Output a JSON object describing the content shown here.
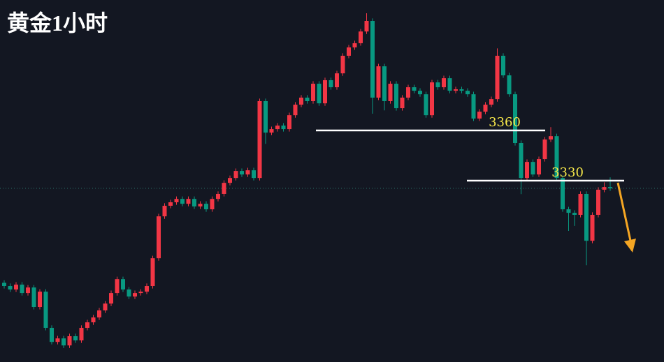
{
  "chart_data": {
    "type": "candlestick",
    "title": "黄金1小时",
    "up_color": "#f23645",
    "down_color": "#089981",
    "ylim": [
      3221.7,
      3437.9
    ],
    "levels": [
      3360,
      3330
    ],
    "open": [
      3269.0,
      3267.1,
      3265.0,
      3267.9,
      3262.9,
      3266.2,
      3254.6,
      3263.7,
      3242.1,
      3233.7,
      3235.8,
      3231.6,
      3237.1,
      3234.6,
      3242.1,
      3245.4,
      3248.3,
      3252.5,
      3256.6,
      3262.9,
      3271.2,
      3265.0,
      3260.8,
      3262.9,
      3263.7,
      3267.1,
      3283.7,
      3308.7,
      3315.0,
      3317.1,
      3319.1,
      3316.2,
      3319.1,
      3314.6,
      3316.2,
      3312.9,
      3319.1,
      3322.1,
      3328.7,
      3331.6,
      3335.8,
      3333.7,
      3336.2,
      3331.6,
      3377.5,
      3358.7,
      3360.8,
      3362.9,
      3360.8,
      3369.1,
      3375.4,
      3379.6,
      3377.5,
      3387.9,
      3376.2,
      3390.0,
      3385.8,
      3394.1,
      3404.6,
      3409.6,
      3412.1,
      3419.1,
      3425.4,
      3379.6,
      3398.3,
      3377.5,
      3387.9,
      3373.3,
      3379.6,
      3385.8,
      3383.7,
      3381.6,
      3369.1,
      3388.7,
      3385.8,
      3391.2,
      3383.7,
      3384.6,
      3383.7,
      3381.6,
      3367.1,
      3371.2,
      3375.4,
      3378.7,
      3404.6,
      3392.9,
      3381.6,
      3352.5,
      3331.6,
      3341.2,
      3333.7,
      3342.9,
      3354.6,
      3356.6,
      3331.6,
      3312.9,
      3310.8,
      3309.6,
      3322.1,
      3294.1,
      3309.6,
      3324.6,
      3326.2
    ],
    "high": [
      3270.5,
      3268.6,
      3269.4,
      3269.4,
      3267.7,
      3267.7,
      3265.2,
      3265.2,
      3243.6,
      3237.3,
      3237.3,
      3238.6,
      3238.6,
      3243.6,
      3246.9,
      3249.8,
      3254.0,
      3258.1,
      3264.4,
      3272.7,
      3272.7,
      3266.5,
      3264.4,
      3265.2,
      3268.6,
      3285.2,
      3310.2,
      3316.5,
      3318.6,
      3320.6,
      3320.6,
      3320.6,
      3320.6,
      3317.7,
      3317.7,
      3320.6,
      3323.6,
      3330.2,
      3333.1,
      3337.3,
      3337.3,
      3337.7,
      3337.7,
      3379.0,
      3379.0,
      3362.3,
      3364.4,
      3364.4,
      3370.6,
      3376.9,
      3381.1,
      3381.1,
      3389.4,
      3389.4,
      3391.5,
      3391.5,
      3395.6,
      3406.1,
      3411.1,
      3413.6,
      3420.6,
      3430.0,
      3426.9,
      3399.8,
      3399.8,
      3389.4,
      3389.4,
      3381.1,
      3387.3,
      3387.3,
      3385.2,
      3383.1,
      3390.2,
      3390.2,
      3392.7,
      3392.7,
      3386.1,
      3386.1,
      3385.2,
      3383.1,
      3372.7,
      3376.9,
      3380.2,
      3409.0,
      3406.1,
      3394.4,
      3383.1,
      3354.0,
      3342.7,
      3342.7,
      3344.4,
      3356.1,
      3362.0,
      3358.1,
      3333.1,
      3314.4,
      3312.3,
      3323.6,
      3323.6,
      3311.1,
      3326.1,
      3329.0,
      3332.0
    ],
    "low": [
      3265.6,
      3263.5,
      3263.5,
      3261.4,
      3261.4,
      3253.1,
      3253.1,
      3240.6,
      3232.2,
      3232.2,
      3230.1,
      3230.1,
      3233.1,
      3233.1,
      3240.6,
      3243.9,
      3246.8,
      3251.0,
      3255.1,
      3261.4,
      3263.5,
      3259.3,
      3259.3,
      3261.4,
      3262.2,
      3265.6,
      3282.2,
      3307.2,
      3313.5,
      3315.6,
      3314.7,
      3314.7,
      3313.1,
      3313.1,
      3311.4,
      3311.4,
      3317.6,
      3320.6,
      3327.2,
      3330.1,
      3332.2,
      3332.2,
      3330.1,
      3330.1,
      3352.0,
      3357.2,
      3359.3,
      3359.3,
      3359.3,
      3367.6,
      3373.9,
      3376.0,
      3376.0,
      3374.7,
      3374.7,
      3384.3,
      3384.3,
      3392.6,
      3403.1,
      3408.1,
      3410.6,
      3417.6,
      3370.0,
      3378.1,
      3372.0,
      3376.0,
      3371.8,
      3371.8,
      3378.1,
      3382.2,
      3380.1,
      3367.6,
      3367.6,
      3384.3,
      3384.3,
      3382.2,
      3382.2,
      3382.2,
      3380.1,
      3365.6,
      3365.6,
      3369.7,
      3373.9,
      3377.2,
      3391.4,
      3380.1,
      3351.0,
      3322.0,
      3330.1,
      3332.2,
      3332.2,
      3341.4,
      3353.1,
      3330.1,
      3311.4,
      3300.0,
      3303.0,
      3308.1,
      3279.5,
      3292.6,
      3308.1,
      3323.1,
      3323.9
    ],
    "close": [
      3267.1,
      3265.0,
      3267.9,
      3262.9,
      3266.2,
      3254.6,
      3263.7,
      3242.1,
      3233.7,
      3235.8,
      3231.6,
      3237.1,
      3234.6,
      3242.1,
      3245.4,
      3248.3,
      3252.5,
      3256.6,
      3262.9,
      3271.2,
      3265.0,
      3260.8,
      3262.9,
      3263.7,
      3267.1,
      3283.7,
      3308.7,
      3315.0,
      3317.1,
      3319.1,
      3316.2,
      3319.1,
      3314.6,
      3316.2,
      3312.9,
      3319.1,
      3322.1,
      3328.7,
      3331.6,
      3335.8,
      3333.7,
      3336.2,
      3331.6,
      3377.5,
      3358.7,
      3360.8,
      3362.9,
      3360.8,
      3369.1,
      3375.4,
      3379.6,
      3377.5,
      3387.9,
      3376.2,
      3390.0,
      3385.8,
      3394.1,
      3404.6,
      3409.6,
      3412.1,
      3419.1,
      3425.4,
      3379.6,
      3398.3,
      3377.5,
      3387.9,
      3373.3,
      3379.6,
      3385.8,
      3383.7,
      3381.6,
      3369.1,
      3388.7,
      3385.8,
      3391.2,
      3383.7,
      3384.6,
      3383.7,
      3381.6,
      3367.1,
      3371.2,
      3375.4,
      3378.7,
      3404.6,
      3392.9,
      3381.6,
      3352.5,
      3331.6,
      3341.2,
      3333.7,
      3342.9,
      3354.6,
      3356.6,
      3331.6,
      3312.9,
      3310.8,
      3309.6,
      3322.1,
      3294.1,
      3309.6,
      3324.6,
      3326.2,
      3325.4
    ]
  }
}
